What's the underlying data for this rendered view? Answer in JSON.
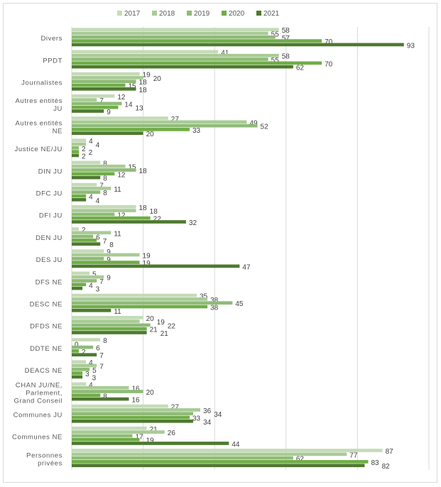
{
  "chart_data": {
    "type": "bar",
    "orientation": "horizontal",
    "categories": [
      "Divers",
      "PPDT",
      "Journalistes",
      "Autres entités JU",
      "Autres entités NE",
      "Justice NE/JU",
      "DIN JU",
      "DFC JU",
      "DFI JU",
      "DEN JU",
      "DES JU",
      "DFS NE",
      "DESC NE",
      "DFDS NE",
      "DDTE NE",
      "DEACS NE",
      "CHAN JU/NE, Parlement, Grand Conseil",
      "Communes JU",
      "Communes NE",
      "Personnes privées"
    ],
    "series": [
      {
        "name": "2017",
        "color": "#c5dbb8",
        "values": [
          58,
          41,
          19,
          12,
          27,
          4,
          8,
          7,
          18,
          2,
          9,
          5,
          35,
          20,
          8,
          4,
          4,
          27,
          21,
          87
        ]
      },
      {
        "name": "2018",
        "color": "#a9cb96",
        "values": [
          55,
          58,
          20,
          7,
          49,
          4,
          15,
          11,
          18,
          11,
          19,
          9,
          38,
          19,
          0,
          7,
          16,
          36,
          26,
          77
        ]
      },
      {
        "name": "2019",
        "color": "#8fbb77",
        "values": [
          57,
          55,
          18,
          14,
          52,
          2,
          18,
          8,
          12,
          6,
          9,
          7,
          45,
          22,
          6,
          5,
          20,
          34,
          17,
          62
        ]
      },
      {
        "name": "2020",
        "color": "#70ad47",
        "values": [
          70,
          70,
          15,
          13,
          33,
          2,
          12,
          4,
          22,
          7,
          19,
          4,
          38,
          21,
          2,
          3,
          8,
          33,
          19,
          83
        ]
      },
      {
        "name": "2021",
        "color": "#4e7a30",
        "values": [
          93,
          62,
          18,
          9,
          20,
          2,
          8,
          4,
          32,
          8,
          47,
          3,
          11,
          21,
          7,
          3,
          16,
          34,
          44,
          82
        ]
      }
    ],
    "xlim": [
      0,
      100
    ],
    "grid": true,
    "legend": "top",
    "data_labels": true
  }
}
